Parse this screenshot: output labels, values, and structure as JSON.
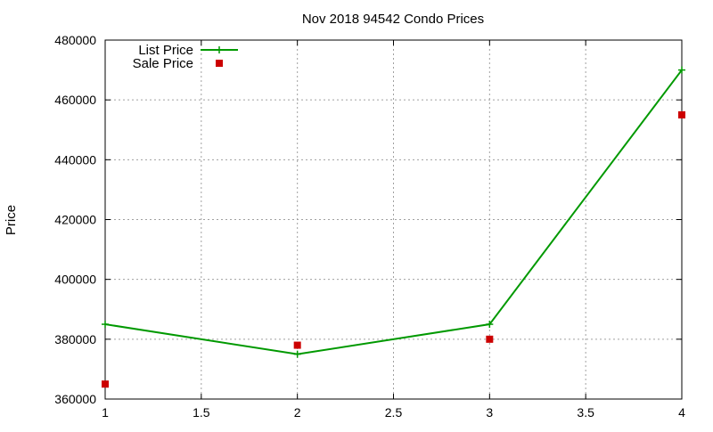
{
  "chart_data": {
    "type": "line",
    "title": "Nov 2018 94542 Condo Prices",
    "xlabel": "",
    "ylabel": "Price",
    "xlim": [
      1,
      4
    ],
    "ylim": [
      360000,
      480000
    ],
    "x_ticks": [
      "1",
      "1.5",
      "2",
      "2.5",
      "3",
      "3.5",
      "4"
    ],
    "y_ticks": [
      "360000",
      "380000",
      "400000",
      "420000",
      "440000",
      "460000",
      "480000"
    ],
    "grid": true,
    "legend_position": "top-left",
    "series": [
      {
        "name": "List Price",
        "kind": "line",
        "marker": "plus",
        "color": "#009900",
        "x": [
          1,
          2,
          3,
          4
        ],
        "y": [
          385000,
          375000,
          385000,
          470000
        ]
      },
      {
        "name": "Sale Price",
        "kind": "scatter",
        "marker": "square",
        "color": "#cc0000",
        "x": [
          1,
          2,
          3,
          4
        ],
        "y": [
          365000,
          378000,
          380000,
          455000
        ]
      }
    ]
  }
}
